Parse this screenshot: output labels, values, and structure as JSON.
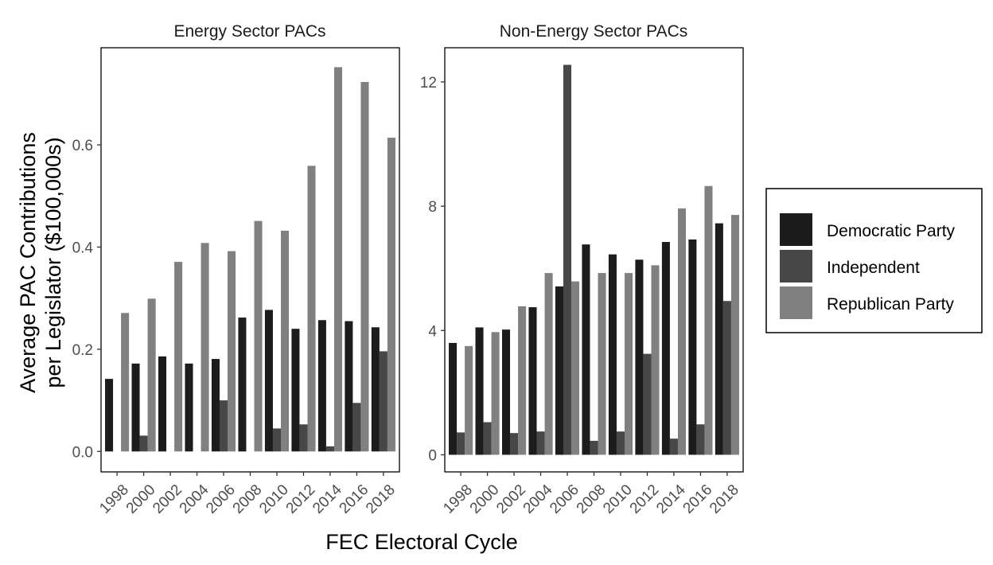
{
  "chart_data": {
    "type": "bar",
    "xlabel": "FEC Electoral Cycle",
    "ylabel_lines": [
      "Average PAC Contributions",
      "per Legislator ($100,000s)"
    ],
    "categories": [
      "1998",
      "2000",
      "2002",
      "2004",
      "2006",
      "2008",
      "2010",
      "2012",
      "2014",
      "2016",
      "2018"
    ],
    "legend": {
      "placement": "right",
      "entries": [
        {
          "name": "Democratic Party",
          "color": "#1c1c1c"
        },
        {
          "name": "Independent",
          "color": "#474747"
        },
        {
          "name": "Republican Party",
          "color": "#808080"
        }
      ]
    },
    "panels": [
      {
        "title": "Energy Sector PACs",
        "ylim": [
          -0.04,
          0.79
        ],
        "yticks": [
          0.0,
          0.2,
          0.4,
          0.6
        ],
        "ytick_labels": [
          "0.0",
          "0.2",
          "0.4",
          "0.6"
        ],
        "series": [
          {
            "name": "Democratic Party",
            "values": [
              0.142,
              0.172,
              0.186,
              0.172,
              0.181,
              0.262,
              0.277,
              0.24,
              0.257,
              0.255,
              0.243
            ]
          },
          {
            "name": "Independent",
            "values": [
              null,
              0.031,
              null,
              null,
              0.1,
              null,
              0.045,
              0.053,
              0.01,
              0.095,
              0.196
            ]
          },
          {
            "name": "Republican Party",
            "values": [
              0.271,
              0.299,
              0.371,
              0.408,
              0.392,
              0.451,
              0.432,
              0.559,
              0.752,
              0.723,
              0.614
            ]
          }
        ]
      },
      {
        "title": "Non-Energy Sector PACs",
        "ylim": [
          -0.55,
          13.1
        ],
        "yticks": [
          0,
          4,
          8,
          12
        ],
        "ytick_labels": [
          "0",
          "4",
          "8",
          "12"
        ],
        "series": [
          {
            "name": "Democratic Party",
            "values": [
              3.6,
              4.1,
              4.03,
              4.75,
              5.42,
              6.77,
              6.45,
              6.28,
              6.85,
              6.93,
              7.45
            ]
          },
          {
            "name": "Independent",
            "values": [
              0.72,
              1.05,
              0.7,
              0.75,
              12.55,
              0.45,
              0.75,
              3.25,
              0.52,
              0.98,
              4.95
            ]
          },
          {
            "name": "Republican Party",
            "values": [
              3.5,
              3.95,
              4.78,
              5.85,
              5.58,
              5.85,
              5.85,
              6.1,
              7.93,
              8.65,
              7.72
            ]
          }
        ]
      }
    ]
  }
}
